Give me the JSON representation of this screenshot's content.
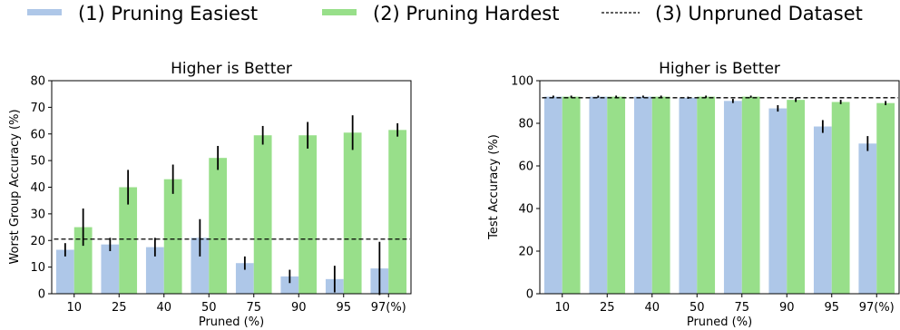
{
  "legend": {
    "items": [
      {
        "label": "(1) Pruning Easiest",
        "color": "#aec7e8",
        "style": "patch"
      },
      {
        "label": "(2) Pruning Hardest",
        "color": "#98df8a",
        "style": "patch"
      },
      {
        "label": "(3) Unpruned Dataset",
        "color": "#000000",
        "style": "dashed-line"
      }
    ]
  },
  "chart_data": [
    {
      "type": "bar",
      "title": "Higher is Better",
      "xlabel": "Pruned (%)",
      "ylabel": "Worst Group Accuracy  (%)",
      "categories": [
        "10",
        "25",
        "40",
        "50",
        "75",
        "90",
        "95",
        "97(%)"
      ],
      "ylim": [
        0,
        80
      ],
      "yticks": [
        0,
        10,
        20,
        30,
        40,
        50,
        60,
        70,
        80
      ],
      "series": [
        {
          "name": "(1) Pruning Easiest",
          "color": "#aec7e8",
          "values": [
            16.5,
            18.5,
            17.5,
            21,
            11.5,
            6.5,
            5.5,
            9.5
          ],
          "errors": [
            2.5,
            2.5,
            3.5,
            7,
            2.5,
            2.5,
            5,
            10
          ]
        },
        {
          "name": "(2) Pruning Hardest",
          "color": "#98df8a",
          "values": [
            25,
            40,
            43,
            51,
            59.5,
            59.5,
            60.5,
            61.5
          ],
          "errors": [
            7,
            6.5,
            5.5,
            4.5,
            3.5,
            5,
            6.5,
            2.5
          ]
        }
      ],
      "reference": {
        "name": "(3) Unpruned Dataset",
        "value": 20.5,
        "color": "#000000"
      },
      "grid": false
    },
    {
      "type": "bar",
      "title": "Higher is Better",
      "xlabel": "Pruned (%)",
      "ylabel": "Test Accuracy (%)",
      "categories": [
        "10",
        "25",
        "40",
        "50",
        "75",
        "90",
        "95",
        "97(%)"
      ],
      "ylim": [
        0,
        100
      ],
      "yticks": [
        0,
        20,
        40,
        60,
        80,
        100
      ],
      "series": [
        {
          "name": "(1) Pruning Easiest",
          "color": "#aec7e8",
          "values": [
            92.5,
            92.5,
            92.5,
            92,
            90.5,
            87,
            78.5,
            70.5
          ],
          "errors": [
            0.5,
            0.5,
            0.5,
            0.5,
            1,
            1.5,
            3,
            3.5
          ]
        },
        {
          "name": "(2) Pruning Hardest",
          "color": "#98df8a",
          "values": [
            92.5,
            92.5,
            92.5,
            92.5,
            92.5,
            91,
            90,
            89.5
          ],
          "errors": [
            0.5,
            0.5,
            0.5,
            0.5,
            0.5,
            1,
            1,
            1
          ]
        }
      ],
      "reference": {
        "name": "(3) Unpruned Dataset",
        "value": 92,
        "color": "#000000"
      },
      "grid": false
    }
  ]
}
